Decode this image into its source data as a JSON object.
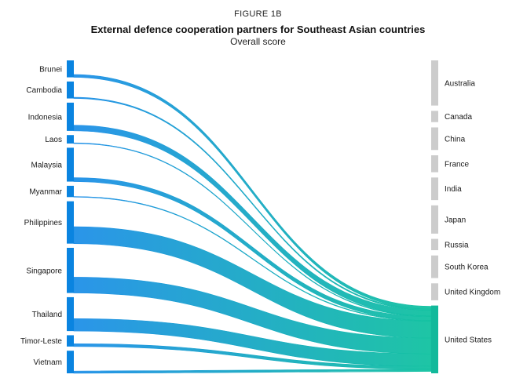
{
  "figure": {
    "label": "FIGURE 1B",
    "title": "External defence cooperation partners for Southeast Asian countries",
    "subtitle": "Overall score"
  },
  "colors": {
    "source_node": "#0a84e0",
    "target_node": "#cccccc",
    "us_node": "#12b99b",
    "flow_start": "#1f8fe8",
    "flow_end": "#12c2a0",
    "flow_thin": "#4aa0e8"
  },
  "chart_data": {
    "type": "sankey",
    "title": "External defence cooperation partners for Southeast Asian countries",
    "subtitle": "Overall score",
    "sources": [
      "Brunei",
      "Cambodia",
      "Indonesia",
      "Laos",
      "Malaysia",
      "Myanmar",
      "Philippines",
      "Singapore",
      "Thailand",
      "Timor-Leste",
      "Vietnam"
    ],
    "targets": [
      "Australia",
      "Canada",
      "China",
      "France",
      "India",
      "Japan",
      "Russia",
      "South Korea",
      "United Kingdom",
      "United States"
    ],
    "node_values": {
      "Brunei": 3,
      "Cambodia": 3,
      "Indonesia": 5,
      "Laos": 1.5,
      "Malaysia": 6,
      "Myanmar": 2,
      "Philippines": 7.5,
      "Singapore": 8,
      "Thailand": 6,
      "Timor-Leste": 2,
      "Vietnam": 4,
      "Australia": 8,
      "Canada": 2,
      "China": 4,
      "France": 3,
      "India": 4,
      "Japan": 5,
      "Russia": 2,
      "South Korea": 4,
      "United Kingdom": 3,
      "United States": 12
    },
    "links": [
      {
        "source": "Brunei",
        "target": "United States",
        "value": 0.5
      },
      {
        "source": "Cambodia",
        "target": "United States",
        "value": 0.2
      },
      {
        "source": "Indonesia",
        "target": "United States",
        "value": 1.0
      },
      {
        "source": "Laos",
        "target": "United States",
        "value": 0.1
      },
      {
        "source": "Malaysia",
        "target": "United States",
        "value": 0.7
      },
      {
        "source": "Myanmar",
        "target": "United States",
        "value": 0.05
      },
      {
        "source": "Philippines",
        "target": "United States",
        "value": 3.0
      },
      {
        "source": "Singapore",
        "target": "United States",
        "value": 2.8
      },
      {
        "source": "Thailand",
        "target": "United States",
        "value": 2.2
      },
      {
        "source": "Timor-Leste",
        "target": "United States",
        "value": 0.5
      },
      {
        "source": "Vietnam",
        "target": "United States",
        "value": 0.4
      }
    ]
  }
}
